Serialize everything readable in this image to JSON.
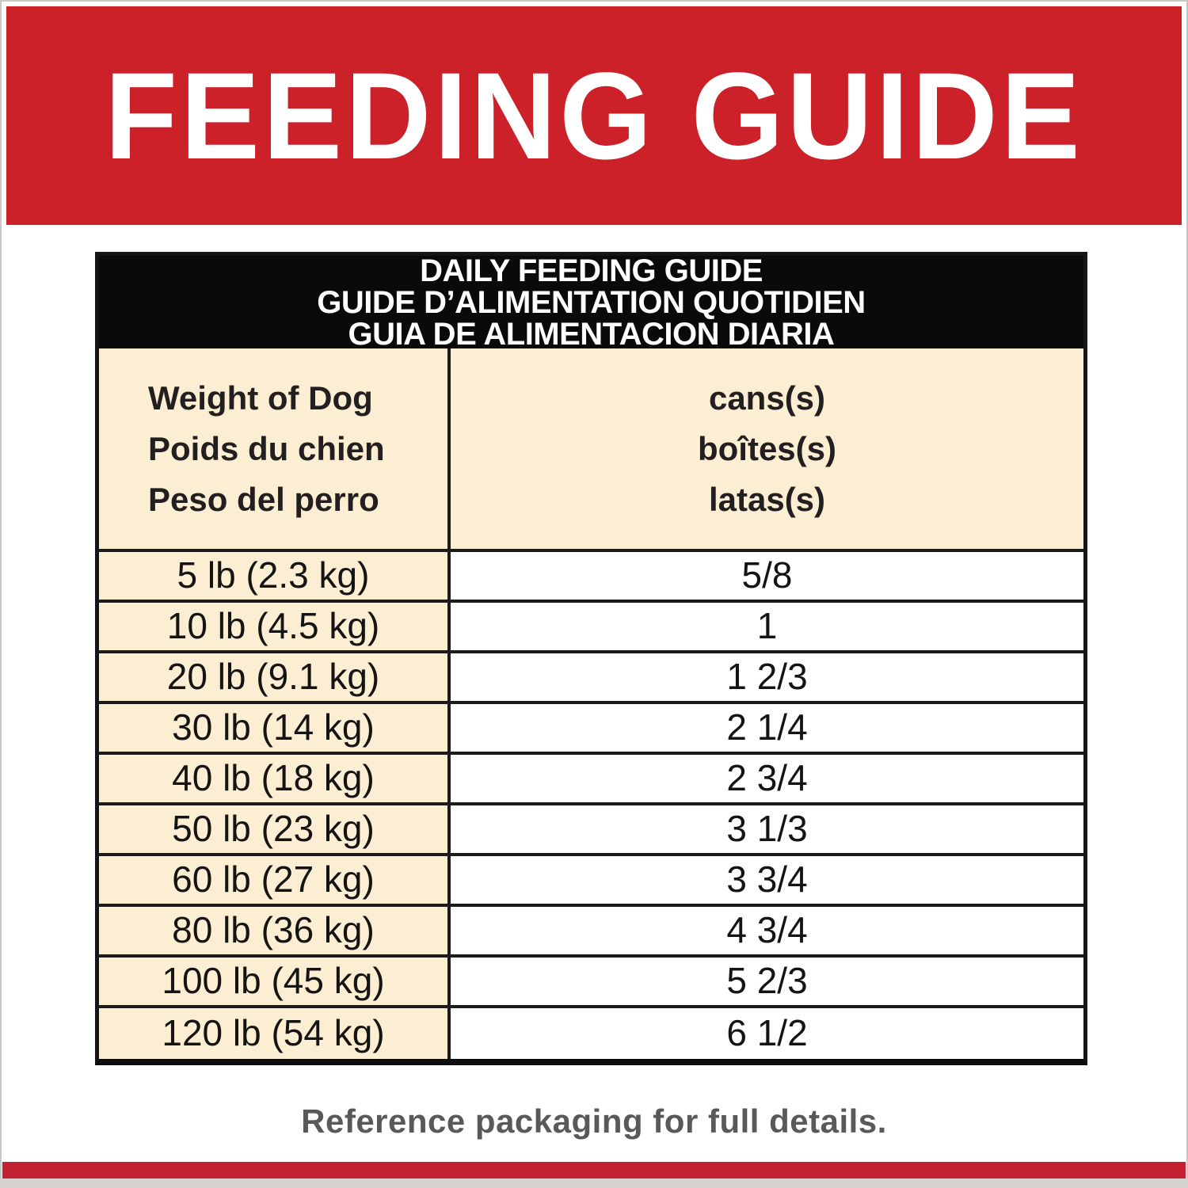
{
  "banner": {
    "title": "FEEDING GUIDE",
    "bg_color": "#cc2128",
    "text_color": "#ffffff"
  },
  "table": {
    "title_lines": [
      "DAILY FEEDING GUIDE",
      "GUIDE D’ALIMENTATION QUOTIDIEN",
      "GUIA DE ALIMENTACION DIARIA"
    ],
    "weight_header_lines": [
      "Weight of Dog",
      "Poids du chien",
      "Peso del perro"
    ],
    "cans_header_lines": [
      "cans(s)",
      "boîtes(s)",
      "latas(s)"
    ],
    "rows": [
      {
        "weight": "5 lb (2.3 kg)",
        "cans": "5/8"
      },
      {
        "weight": "10 lb (4.5 kg)",
        "cans": "1"
      },
      {
        "weight": "20 lb (9.1 kg)",
        "cans": "1 2/3"
      },
      {
        "weight": "30 lb (14 kg)",
        "cans": "2 1/4"
      },
      {
        "weight": "40 lb (18 kg)",
        "cans": "2 3/4"
      },
      {
        "weight": "50 lb (23 kg)",
        "cans": "3 1/3"
      },
      {
        "weight": "60 lb (27 kg)",
        "cans": "3 3/4"
      },
      {
        "weight": "80 lb (36 kg)",
        "cans": "4 3/4"
      },
      {
        "weight": "100 lb (45 kg)",
        "cans": "5 2/3"
      },
      {
        "weight": "120 lb (54 kg)",
        "cans": "6 1/2"
      }
    ],
    "colors": {
      "title_bg": "#0a0a0a",
      "title_text": "#ffffff",
      "cream_bg": "#fbeed3",
      "row_bg": "#ffffff",
      "border": "#1a1a1a",
      "text": "#231f20"
    }
  },
  "footer": {
    "note": "Reference packaging for full details.",
    "text_color": "#58595b",
    "bottom_bar_color": "#c42132"
  }
}
